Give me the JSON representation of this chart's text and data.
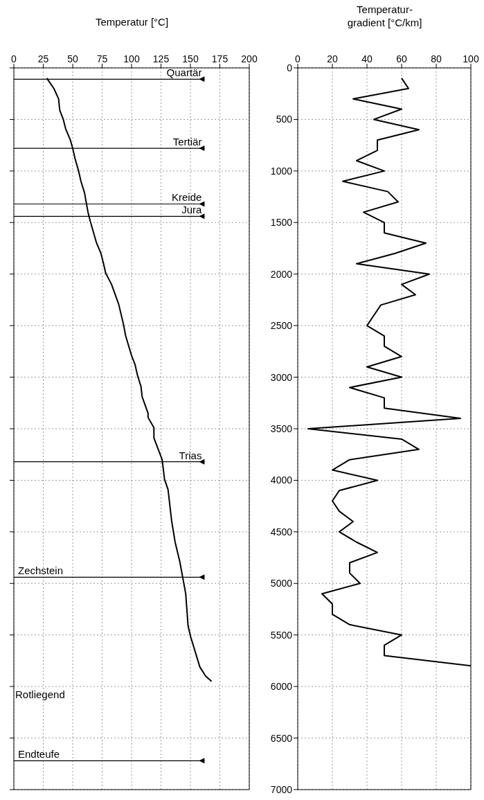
{
  "chart_data": [
    {
      "type": "line",
      "orientation": "horizontal",
      "xlabel": "Temperatur [°C]",
      "xlim": [
        0,
        200
      ],
      "xticks": [
        0,
        25,
        50,
        75,
        100,
        125,
        150,
        175,
        200
      ],
      "ylim": [
        7000,
        0
      ],
      "yticks": [
        0,
        500,
        1000,
        1500,
        2000,
        2500,
        3000,
        3500,
        4000,
        4500,
        5000,
        5500,
        6000,
        6500,
        7000
      ],
      "tick_labels": "x",
      "grid": true,
      "color": "#000000",
      "x": [
        100,
        200,
        300,
        410,
        500,
        590,
        700,
        780,
        880,
        1000,
        1100,
        1210,
        1400,
        1490,
        1690,
        1800,
        1890,
        1990,
        2100,
        2290,
        2480,
        2600,
        2790,
        2880,
        2980,
        3090,
        3190,
        3350,
        3390,
        3490,
        3590,
        3800,
        3990,
        4090,
        4390,
        4600,
        4790,
        5100,
        5410,
        5510,
        5810,
        5900,
        5950
      ],
      "values": [
        28,
        34,
        38,
        39,
        42,
        44,
        48,
        50,
        52,
        55,
        57,
        60,
        63,
        65,
        70,
        74,
        76,
        78,
        83,
        89,
        93,
        95,
        100,
        103,
        105,
        108,
        109,
        114,
        114,
        119,
        119,
        126,
        128,
        131,
        134,
        137,
        141,
        146,
        148,
        150,
        158,
        163,
        168
      ],
      "ref_lines": [
        {
          "axis": "y",
          "value": 110,
          "label": "Quartär"
        },
        {
          "axis": "y",
          "value": 780,
          "label": "Tertiär"
        },
        {
          "axis": "y",
          "value": 1320,
          "label": "Kreide"
        },
        {
          "axis": "y",
          "value": 1440,
          "label": "Jura"
        },
        {
          "axis": "y",
          "value": 3820,
          "label": "Trias"
        },
        {
          "axis": "y",
          "value": 4940,
          "label": "Zechstein"
        },
        {
          "axis": "y",
          "value": 6720,
          "label": "Endteufe"
        }
      ],
      "annotations": [
        "Rotliegend"
      ]
    },
    {
      "type": "line",
      "orientation": "horizontal",
      "xlabel": "Temperatur-\ngradient [°C/km]",
      "xlim": [
        0,
        100
      ],
      "xticks": [
        0,
        20,
        40,
        60,
        80,
        100
      ],
      "ylim": [
        7000,
        0
      ],
      "yticks": [
        0,
        500,
        1000,
        1500,
        2000,
        2500,
        3000,
        3500,
        4000,
        4500,
        5000,
        5500,
        6000,
        6500,
        7000
      ],
      "grid": true,
      "color": "#000000",
      "x": [
        100,
        200,
        300,
        400,
        500,
        600,
        700,
        800,
        900,
        1000,
        1100,
        1200,
        1300,
        1400,
        1500,
        1600,
        1700,
        1800,
        1900,
        2000,
        2100,
        2200,
        2300,
        2400,
        2500,
        2600,
        2700,
        2800,
        2900,
        3000,
        3100,
        3200,
        3300,
        3400,
        3500,
        3600,
        3700,
        3800,
        3900,
        4000,
        4100,
        4200,
        4300,
        4400,
        4500,
        4600,
        4700,
        4800,
        4900,
        5000,
        5100,
        5200,
        5300,
        5400,
        5500,
        5600,
        5700,
        5800
      ],
      "values": [
        60,
        64,
        32,
        60,
        44,
        70,
        46,
        46,
        34,
        50,
        26,
        52,
        58,
        38,
        50,
        50,
        74,
        56,
        34,
        76,
        60,
        68,
        48,
        44,
        40,
        50,
        50,
        60,
        40,
        60,
        30,
        50,
        50,
        94,
        6,
        60,
        70,
        30,
        20,
        46,
        24,
        20,
        24,
        32,
        24,
        34,
        46,
        30,
        30,
        36,
        14,
        20,
        20,
        30,
        60,
        50,
        50,
        100
      ]
    }
  ]
}
